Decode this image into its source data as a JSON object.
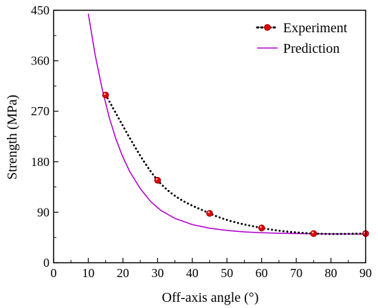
{
  "chart_data": {
    "type": "scatter",
    "xlabel": "Off-axis angle (°)",
    "ylabel": "Strength (MPa)",
    "xlim": [
      0,
      90
    ],
    "ylim": [
      0,
      450
    ],
    "xticks": [
      0,
      10,
      20,
      30,
      40,
      50,
      60,
      70,
      80,
      90
    ],
    "yticks": [
      0,
      90,
      180,
      270,
      360,
      450
    ],
    "grid": false,
    "legend_position": "top-right",
    "series": [
      {
        "name": "Experiment",
        "style": "dotted-line-with-markers",
        "color": "#000000",
        "marker_color": "#e00000",
        "x": [
          15,
          30,
          45,
          60,
          75,
          90
        ],
        "y": [
          299,
          147,
          88,
          62,
          52,
          52
        ]
      },
      {
        "name": "Prediction",
        "style": "line",
        "color": "#b000d0",
        "x": [
          10,
          12,
          14,
          16,
          18,
          20,
          22,
          25,
          28,
          31,
          35,
          40,
          45,
          50,
          55,
          60,
          65,
          70,
          75,
          80,
          85,
          90
        ],
        "y": [
          444,
          370,
          310,
          260,
          220,
          188,
          162,
          132,
          109,
          93,
          79,
          68,
          61.5,
          57.5,
          55,
          53.5,
          52.5,
          52,
          51.6,
          51.4,
          51.2,
          51
        ]
      }
    ]
  }
}
